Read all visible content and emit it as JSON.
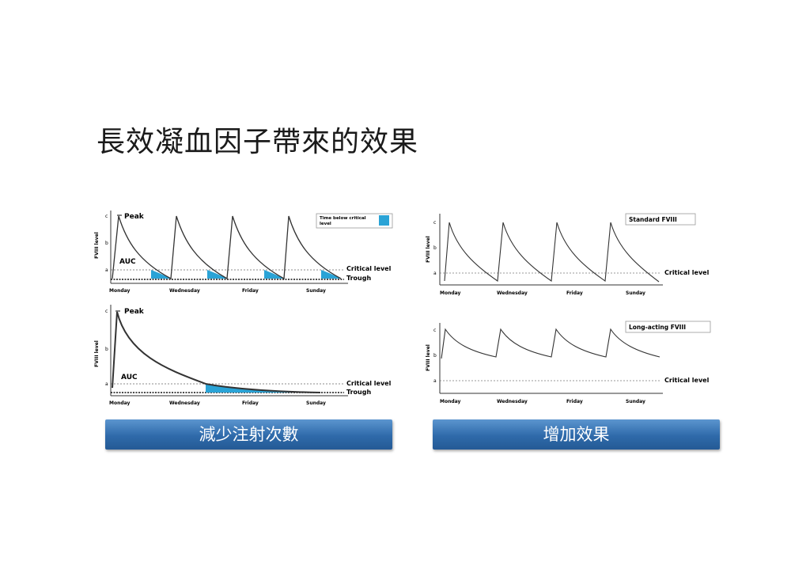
{
  "title": "長效凝血因子帶來的效果",
  "labels": {
    "peak": "Peak",
    "auc": "AUC",
    "critical_level": "Critical level",
    "trough": "Trough",
    "time_below_critical": "Time below critical",
    "time_below_critical_2": "level",
    "standard": "Standard FVIII",
    "long_acting": "Long-acting FVIII",
    "ylabel": "FVIII level",
    "ticks": [
      "c",
      "b",
      "a"
    ],
    "days": [
      "Monday",
      "Wednesday",
      "Friday",
      "Sunday"
    ]
  },
  "colors": {
    "shade": "#2aa3d6",
    "line": "#333333",
    "banner": "#2f6aaa"
  },
  "banners": {
    "left": "減少注射次數",
    "right": "增加效果"
  },
  "chart_data": [
    {
      "type": "line",
      "name": "Standard dosing, time below critical",
      "x": [
        "Monday",
        "Wednesday",
        "Friday",
        "Sunday"
      ],
      "doses": 4,
      "peak": "c",
      "critical": "a",
      "shaded": "time below critical level"
    },
    {
      "type": "line",
      "name": "Long-acting dosing, single dose",
      "x": [
        "Monday",
        "Wednesday",
        "Friday",
        "Sunday"
      ],
      "doses": 1,
      "peak": "c",
      "critical": "a",
      "shaded": "time below critical level"
    },
    {
      "type": "line",
      "name": "Standard FVIII",
      "x": [
        "Monday",
        "Wednesday",
        "Friday",
        "Sunday"
      ],
      "doses": 4,
      "peak": "c",
      "critical": "a"
    },
    {
      "type": "line",
      "name": "Long-acting FVIII",
      "x": [
        "Monday",
        "Wednesday",
        "Friday",
        "Sunday"
      ],
      "doses": 4,
      "peak": "c",
      "critical": "a"
    }
  ]
}
